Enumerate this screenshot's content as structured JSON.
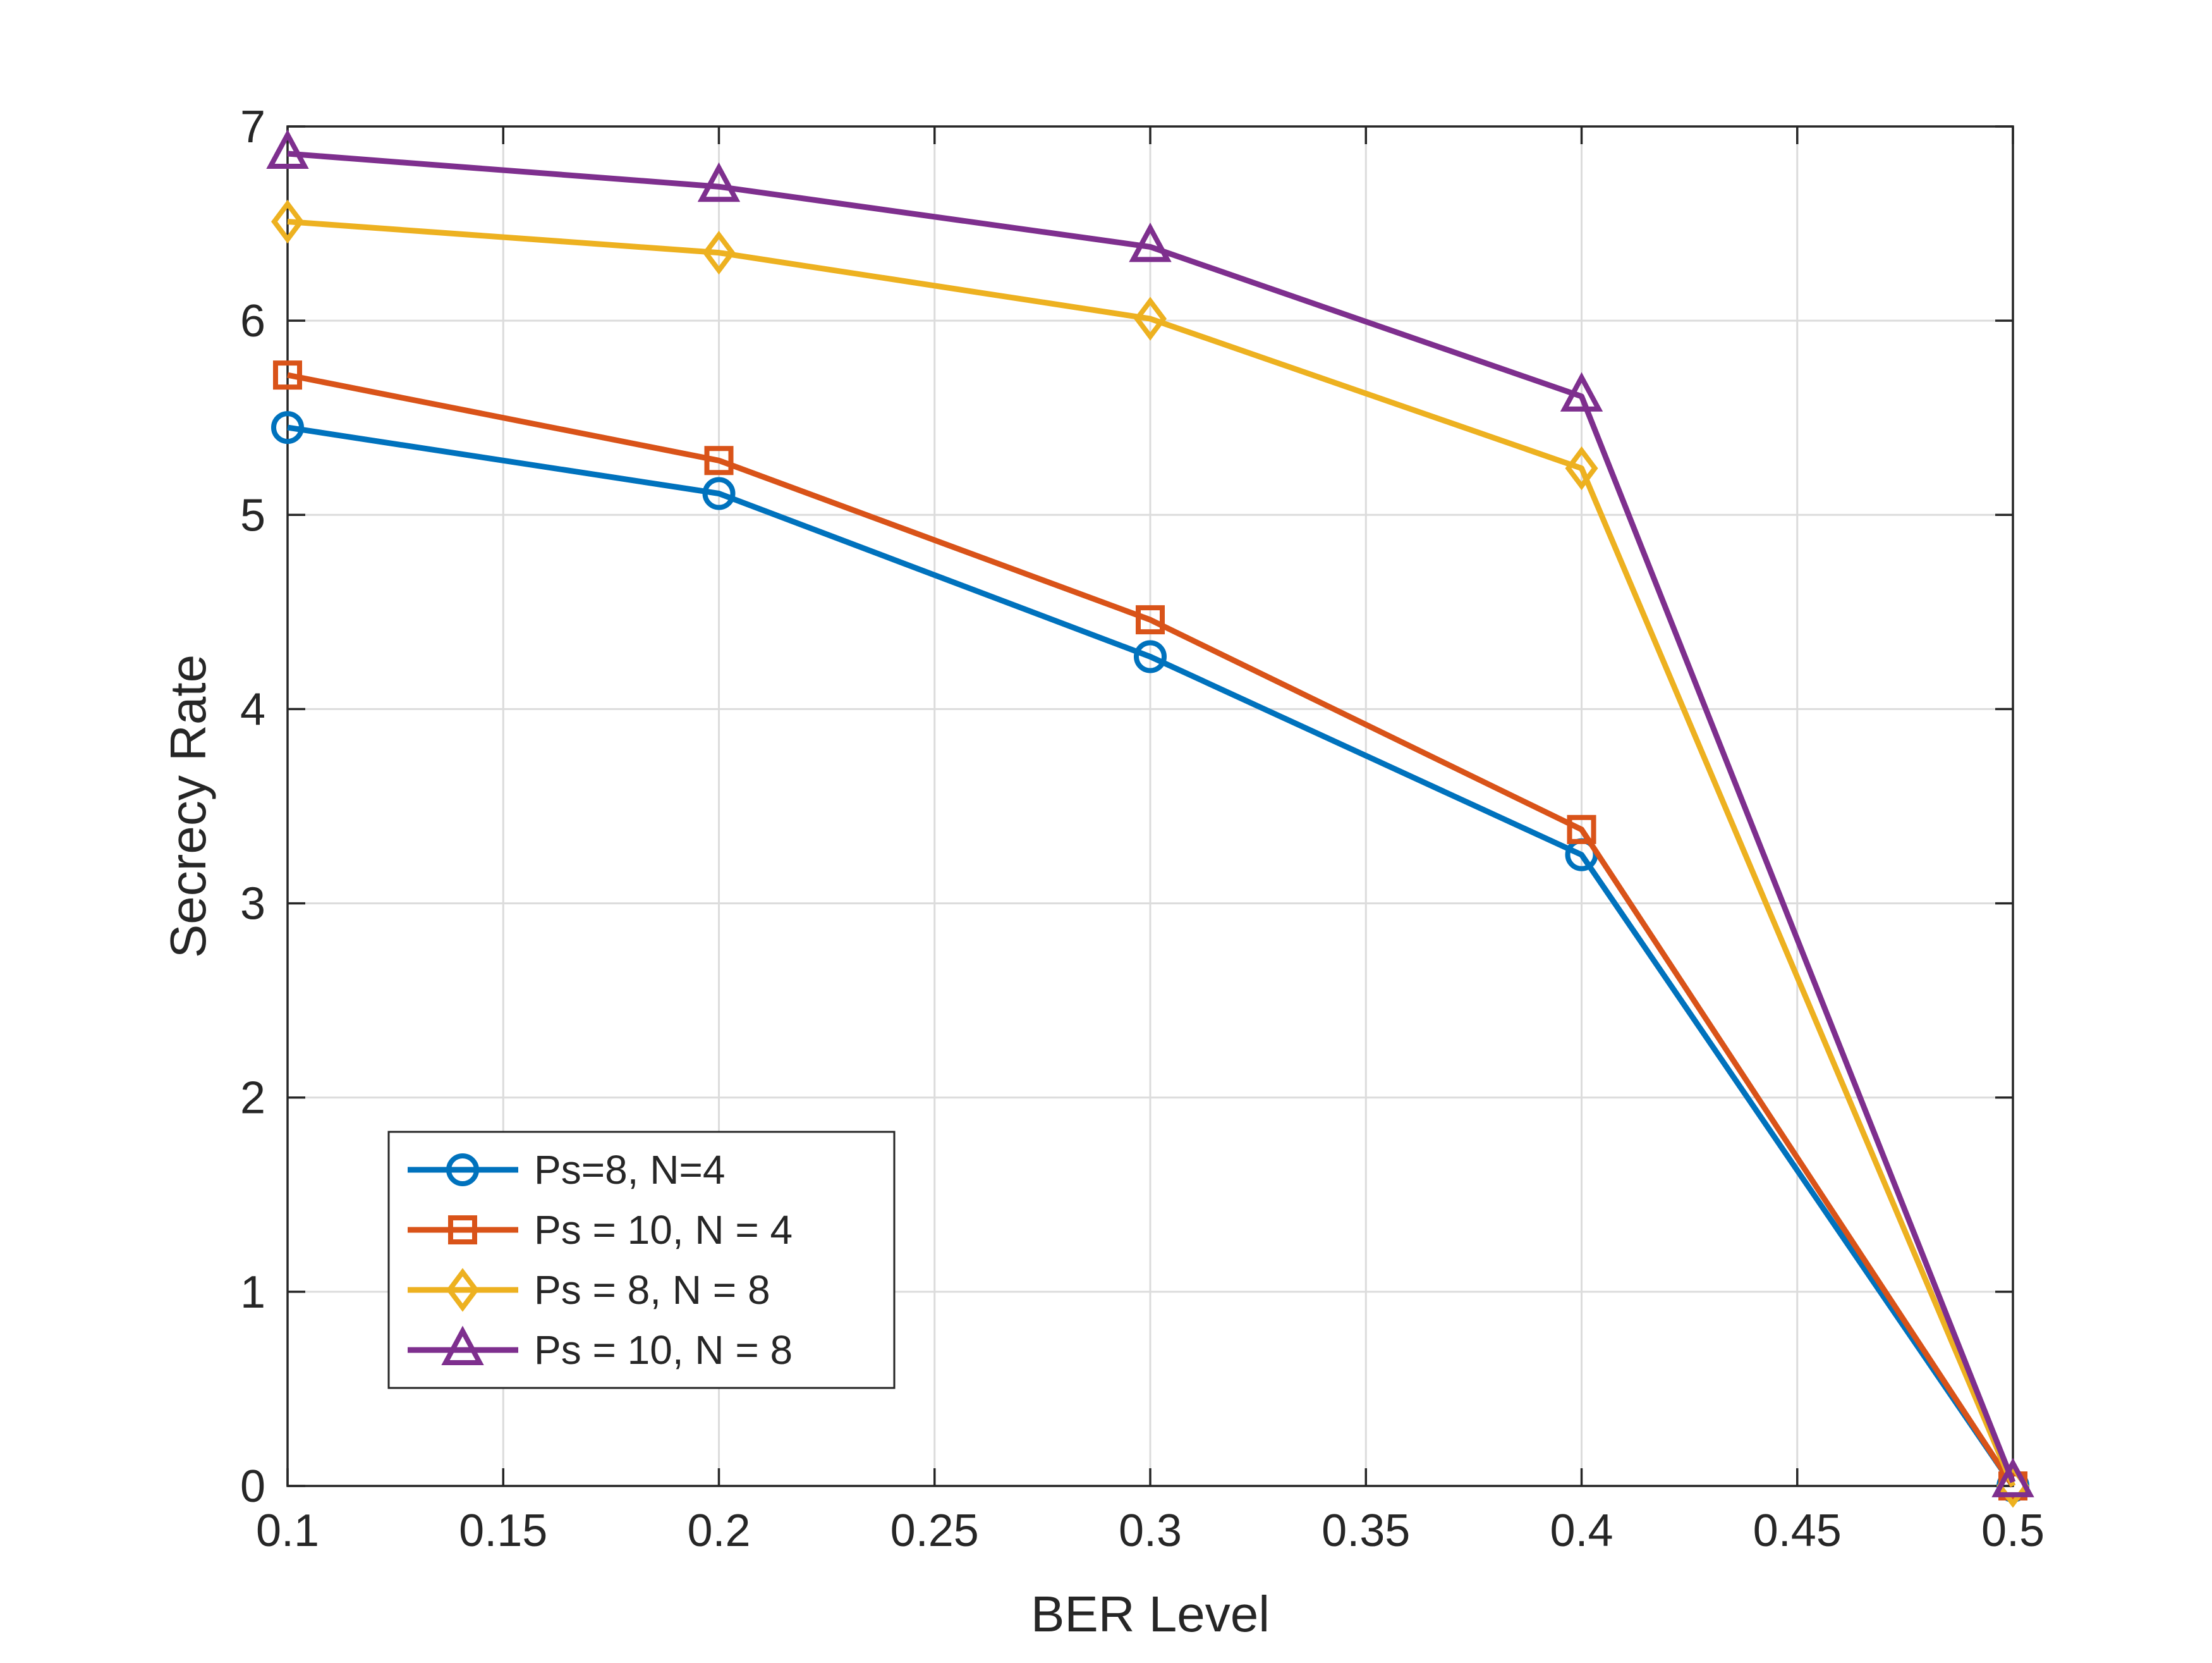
{
  "chart_data": {
    "type": "line",
    "title": "",
    "xlabel": "BER Level",
    "ylabel": "Secrecy Rate",
    "xlim": [
      0.1,
      0.5
    ],
    "ylim": [
      0,
      7
    ],
    "grid": true,
    "legend_position": "bottom-left",
    "x_ticks": [
      0.1,
      0.15,
      0.2,
      0.25,
      0.3,
      0.35,
      0.4,
      0.45,
      0.5
    ],
    "x_tick_labels": [
      "0.1",
      "0.15",
      "0.2",
      "0.25",
      "0.3",
      "0.35",
      "0.4",
      "0.45",
      "0.5"
    ],
    "y_ticks": [
      0,
      1,
      2,
      3,
      4,
      5,
      6,
      7
    ],
    "y_tick_labels": [
      "0",
      "1",
      "2",
      "3",
      "4",
      "5",
      "6",
      "7"
    ],
    "x": [
      0.1,
      0.2,
      0.3,
      0.4,
      0.5
    ],
    "series": [
      {
        "name": "Ps=8, N=4",
        "color": "#0072BD",
        "marker": "circle",
        "values": [
          5.45,
          5.11,
          4.27,
          3.25,
          0
        ]
      },
      {
        "name": "Ps = 10, N = 4",
        "color": "#D95319",
        "marker": "square",
        "values": [
          5.72,
          5.28,
          4.46,
          3.38,
          0
        ]
      },
      {
        "name": "Ps = 8, N = 8",
        "color": "#EDB120",
        "marker": "diamond",
        "values": [
          6.51,
          6.35,
          6.01,
          5.24,
          0
        ]
      },
      {
        "name": "Ps = 10, N = 8",
        "color": "#7E2F8E",
        "marker": "triangle",
        "values": [
          6.86,
          6.69,
          6.38,
          5.61,
          0.02
        ]
      }
    ]
  }
}
